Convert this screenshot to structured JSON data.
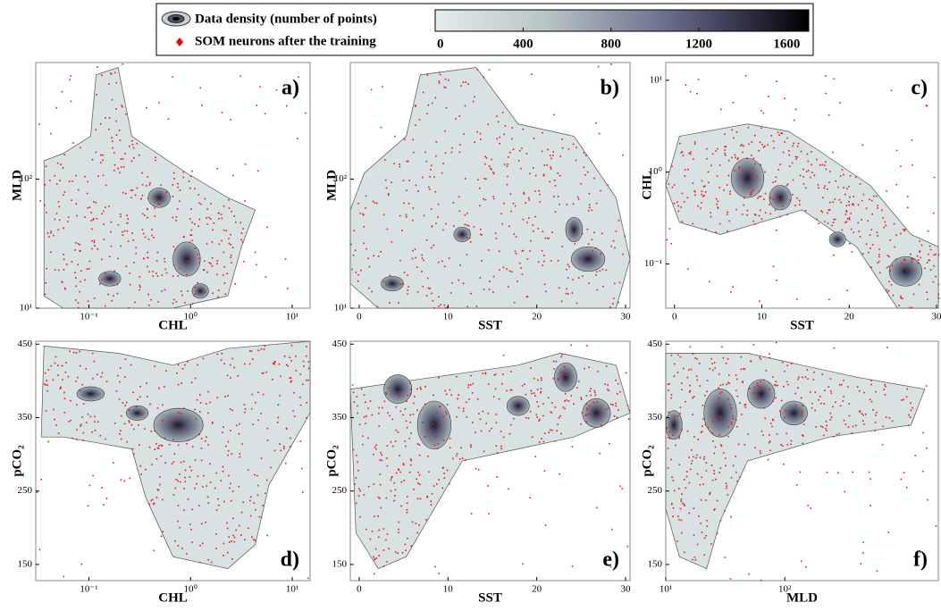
{
  "legend": {
    "density_label": "Data density (number of points)",
    "som_label": "SOM neurons after the training"
  },
  "colorbar": {
    "lim": [
      0,
      1700
    ],
    "ticks": [
      0,
      400,
      800,
      1200,
      1600
    ]
  },
  "panels": [
    {
      "label": "a)",
      "xlabel": "CHL",
      "ylabel": "MLD",
      "xlog": true,
      "ylog": true,
      "xlim": [
        0.03,
        15
      ],
      "ylim": [
        10,
        800
      ],
      "xticks": [
        {
          "value": 0.1,
          "label": "10⁻¹"
        },
        {
          "value": 1,
          "label": "10⁰"
        },
        {
          "value": 10,
          "label": "10¹"
        }
      ],
      "yticks": [
        {
          "value": 10,
          "label": "10¹"
        },
        {
          "value": 100,
          "label": "10²"
        }
      ]
    },
    {
      "label": "b)",
      "xlabel": "SST",
      "ylabel": "MLD",
      "xlog": false,
      "ylog": true,
      "xlim": [
        -1,
        30.5
      ],
      "ylim": [
        10,
        800
      ],
      "xticks": [
        0,
        10,
        20,
        30
      ],
      "yticks": [
        {
          "value": 10,
          "label": "10¹"
        },
        {
          "value": 100,
          "label": "10²"
        }
      ]
    },
    {
      "label": "c)",
      "xlabel": "SST",
      "ylabel": "CHL",
      "xlog": false,
      "ylog": true,
      "xlim": [
        -1,
        30.2
      ],
      "ylim": [
        0.033,
        15.6
      ],
      "xticks": [
        0,
        10,
        20,
        30
      ],
      "yticks": [
        {
          "value": 0.1,
          "label": "10⁻¹"
        },
        {
          "value": 1,
          "label": "10⁰"
        },
        {
          "value": 10,
          "label": "10¹"
        }
      ]
    },
    {
      "label": "d)",
      "xlabel": "CHL",
      "ylabel": "pCO₂",
      "xlog": true,
      "ylog": false,
      "xlim": [
        0.03,
        15
      ],
      "ylim": [
        128,
        454
      ],
      "xticks": [
        {
          "value": 0.1,
          "label": "10⁻¹"
        },
        {
          "value": 1,
          "label": "10⁰"
        },
        {
          "value": 10,
          "label": "10¹"
        }
      ],
      "yticks": [
        150,
        250,
        350,
        450
      ]
    },
    {
      "label": "e)",
      "xlabel": "SST",
      "ylabel": "pCO₂",
      "xlog": false,
      "ylog": false,
      "xlim": [
        -1,
        30.5
      ],
      "ylim": [
        128,
        454
      ],
      "xticks": [
        0,
        10,
        20,
        30
      ],
      "yticks": [
        150,
        250,
        350,
        450
      ]
    },
    {
      "label": "f)",
      "xlabel": "MLD",
      "ylabel": "pCO₂",
      "xlog": true,
      "ylog": false,
      "xlim": [
        10,
        1950
      ],
      "ylim": [
        128,
        454
      ],
      "xticks": [
        {
          "value": 10,
          "label": "10¹"
        },
        {
          "value": 100,
          "label": "10²"
        }
      ],
      "yticks": [
        150,
        250,
        350,
        450
      ]
    }
  ]
}
